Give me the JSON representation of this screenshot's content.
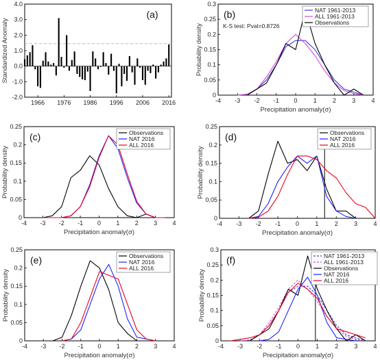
{
  "colors": {
    "nat": "#1f1fff",
    "all": "#e8001c",
    "obs": "#000000",
    "nat_b": "#3a3ae0",
    "all_b": "#d64bd6",
    "ref_line": "#f0a0a0",
    "bars": "#000000"
  },
  "chart_data": [
    {
      "id": "a",
      "panel_label": "(a)",
      "type": "bar",
      "xlabel": "",
      "ylabel": "Standardized Anomaly",
      "xlim": [
        1961,
        2017
      ],
      "ylim": [
        -2.0,
        4.0
      ],
      "xticks": [
        1966,
        1976,
        1986,
        1996,
        2006,
        2016
      ],
      "yticks": [
        -2.0,
        -1.0,
        0.0,
        1.0,
        2.0,
        3.0,
        4.0
      ],
      "ytick_labels": [
        "-2.0",
        "-1.0",
        "0.0",
        "1.0",
        "2.0",
        "3.0",
        "4.0"
      ],
      "reference_line": 1.45,
      "x": [
        1961,
        1962,
        1963,
        1964,
        1965,
        1966,
        1967,
        1968,
        1969,
        1970,
        1971,
        1972,
        1973,
        1974,
        1975,
        1976,
        1977,
        1978,
        1979,
        1980,
        1981,
        1982,
        1983,
        1984,
        1985,
        1986,
        1987,
        1988,
        1989,
        1990,
        1991,
        1992,
        1993,
        1994,
        1995,
        1996,
        1997,
        1998,
        1999,
        2000,
        2001,
        2002,
        2003,
        2004,
        2005,
        2006,
        2007,
        2008,
        2009,
        2010,
        2011,
        2012,
        2013,
        2014,
        2015,
        2016
      ],
      "values": [
        0.45,
        0.7,
        0.9,
        1.35,
        -0.2,
        -1.3,
        -1.4,
        0.35,
        0.9,
        0.3,
        0.1,
        0.2,
        -0.6,
        3.1,
        0.6,
        -0.1,
        2.0,
        -0.3,
        0.4,
        0.95,
        -0.5,
        -0.7,
        -0.85,
        -0.9,
        -0.35,
        -1.6,
        0.95,
        0.5,
        -0.2,
        -0.05,
        0.9,
        0.2,
        -0.55,
        0.8,
        -0.3,
        -1.75,
        0.15,
        -1.3,
        -0.5,
        -0.95,
        0.65,
        -0.4,
        -1.2,
        0.5,
        -0.1,
        -0.9,
        -1.2,
        -0.3,
        -0.45,
        0.1,
        -0.8,
        -0.4,
        0.1,
        0.3,
        0.5,
        1.4
      ]
    },
    {
      "id": "b",
      "panel_label": "(b)",
      "type": "line",
      "xlabel": "Precipitation anomaly(σ)",
      "ylabel": "Probability density",
      "xlim": [
        -4,
        4
      ],
      "ylim": [
        0,
        0.3
      ],
      "xticks": [
        -4,
        -3,
        -2,
        -1,
        0,
        1,
        2,
        3,
        4
      ],
      "yticks": [
        0,
        0.05,
        0.1,
        0.15,
        0.2,
        0.25,
        0.3
      ],
      "annotation": "K-S test: Pval=0.8726",
      "legend": [
        "NAT 1961-2013",
        "ALL 1961-2013",
        "Observations"
      ],
      "series": [
        {
          "name": "NAT 1961-2013",
          "color_key": "nat_b",
          "x": [
            -3,
            -2.5,
            -2,
            -1.5,
            -1,
            -0.5,
            0,
            0.5,
            1,
            1.5,
            2,
            2.5,
            3,
            3.5
          ],
          "y": [
            0,
            0.003,
            0.02,
            0.05,
            0.1,
            0.16,
            0.18,
            0.18,
            0.15,
            0.1,
            0.05,
            0.02,
            0.01,
            0
          ]
        },
        {
          "name": "ALL 1961-2013",
          "color_key": "all_b",
          "x": [
            -3,
            -2.5,
            -2,
            -1.5,
            -1,
            -0.5,
            0,
            0.5,
            1,
            1.5,
            2,
            2.5,
            3,
            3.5
          ],
          "y": [
            0,
            0.003,
            0.02,
            0.06,
            0.11,
            0.17,
            0.2,
            0.17,
            0.13,
            0.08,
            0.04,
            0.015,
            0.005,
            0
          ]
        },
        {
          "name": "Observations",
          "color_key": "obs",
          "x": [
            -2.5,
            -2,
            -1.5,
            -1,
            -0.5,
            0,
            0.5,
            1,
            1.5,
            2,
            2.5,
            3,
            3.5
          ],
          "y": [
            0,
            0.02,
            0.04,
            0.1,
            0.17,
            0.15,
            0.28,
            0.17,
            0.1,
            0.04,
            0,
            0.02,
            0
          ]
        }
      ]
    },
    {
      "id": "c",
      "panel_label": "(c)",
      "type": "line",
      "xlabel": "Precipitation anomaly(σ)",
      "ylabel": "Probability density",
      "xlim": [
        -4,
        4
      ],
      "ylim": [
        0,
        0.25
      ],
      "xticks": [
        -4,
        -3,
        -2,
        -1,
        0,
        1,
        2,
        3,
        4
      ],
      "xtick_labels": [
        "-4",
        "-3",
        "-2",
        "-1",
        "0",
        "1",
        "2",
        "3",
        "4"
      ],
      "yticks": [
        0,
        0.05,
        0.1,
        0.15,
        0.2,
        0.25
      ],
      "legend": [
        "Observations",
        "NAT 2016",
        "ALL 2016"
      ],
      "series": [
        {
          "name": "Observations",
          "color_key": "obs",
          "x": [
            -3,
            -2.5,
            -2,
            -1.5,
            -1,
            -0.5,
            0,
            0.5,
            1,
            1.5,
            2,
            2.5,
            3,
            3.5
          ],
          "y": [
            0,
            0.005,
            0.03,
            0.11,
            0.13,
            0.17,
            0.145,
            0.08,
            0.03,
            0.005,
            0,
            0.01,
            0,
            0
          ]
        },
        {
          "name": "NAT 2016",
          "color_key": "nat",
          "x": [
            -3,
            -2.5,
            -2,
            -1.5,
            -1,
            -0.5,
            0,
            0.5,
            1,
            1.5,
            2,
            2.5,
            3,
            3.5
          ],
          "y": [
            0,
            0,
            0,
            0.005,
            0.03,
            0.09,
            0.17,
            0.225,
            0.19,
            0.11,
            0.04,
            0.01,
            0,
            0
          ]
        },
        {
          "name": "ALL 2016",
          "color_key": "all",
          "x": [
            -3,
            -2.5,
            -2,
            -1.5,
            -1,
            -0.5,
            0,
            0.5,
            1,
            1.5,
            2,
            2.5,
            3,
            3.5
          ],
          "y": [
            0,
            0,
            0,
            0.005,
            0.03,
            0.085,
            0.165,
            0.225,
            0.2,
            0.12,
            0.045,
            0.01,
            0,
            0
          ]
        }
      ]
    },
    {
      "id": "d",
      "panel_label": "(d)",
      "type": "line",
      "xlabel": "Precipitation anomaly(σ)",
      "ylabel": "Probability density",
      "xlim": [
        -4,
        4
      ],
      "ylim": [
        0,
        0.25
      ],
      "xticks": [
        -4,
        -3,
        -2,
        -1,
        0,
        1,
        2,
        3,
        4
      ],
      "yticks": [
        0,
        0.05,
        0.1,
        0.15,
        0.2,
        0.25
      ],
      "vline": 1.4,
      "legend": [
        "Observations",
        "NAT 2016",
        "ALL 2016"
      ],
      "series": [
        {
          "name": "Observations",
          "color_key": "obs",
          "x": [
            -2.5,
            -2,
            -1.5,
            -1,
            -0.5,
            0,
            0.5,
            1,
            1.5,
            2,
            2.5,
            3
          ],
          "y": [
            0,
            0.02,
            0.12,
            0.21,
            0.15,
            0.16,
            0.13,
            0.17,
            0.08,
            0.02,
            0.02,
            0
          ]
        },
        {
          "name": "NAT 2016",
          "color_key": "nat",
          "x": [
            -2.5,
            -2,
            -1.5,
            -1,
            -0.5,
            0,
            0.5,
            1,
            1.5,
            2,
            2.5,
            3
          ],
          "y": [
            0,
            0.005,
            0.04,
            0.1,
            0.14,
            0.17,
            0.15,
            0.17,
            0.06,
            0.02,
            0.005,
            0
          ]
        },
        {
          "name": "ALL 2016",
          "color_key": "all",
          "x": [
            -2.5,
            -2,
            -1.5,
            -1,
            -0.5,
            0,
            0.5,
            1,
            1.5,
            2,
            2.5,
            3,
            3.5,
            4
          ],
          "y": [
            0,
            0.003,
            0.02,
            0.06,
            0.12,
            0.17,
            0.17,
            0.16,
            0.13,
            0.11,
            0.07,
            0.04,
            0.03,
            0
          ]
        }
      ]
    },
    {
      "id": "e",
      "panel_label": "(e)",
      "type": "line",
      "xlabel": "Precipitation anomaly(σ)",
      "ylabel": "Probability density",
      "xlim": [
        -4,
        4
      ],
      "ylim": [
        0,
        0.25
      ],
      "xticks": [
        -4,
        -3,
        -2,
        -1,
        0,
        1,
        2,
        3,
        4
      ],
      "yticks": [
        0,
        0.05,
        0.1,
        0.15,
        0.2,
        0.25
      ],
      "legend": [
        "Observations",
        "NAT 2016",
        "ALL 2016"
      ],
      "series": [
        {
          "name": "Observations",
          "color_key": "obs",
          "x": [
            -2.5,
            -2,
            -1.5,
            -1,
            -0.5,
            0,
            0.5,
            1,
            1.5,
            2,
            2.5
          ],
          "y": [
            0,
            0.01,
            0.07,
            0.15,
            0.22,
            0.2,
            0.14,
            0.05,
            0.02,
            0,
            0
          ]
        },
        {
          "name": "NAT 2016",
          "color_key": "nat",
          "x": [
            -2,
            -1.5,
            -1,
            -0.5,
            0,
            0.5,
            1,
            1.5,
            2,
            2.5,
            3
          ],
          "y": [
            0,
            0.005,
            0.03,
            0.1,
            0.17,
            0.21,
            0.15,
            0.06,
            0.01,
            0.005,
            0
          ]
        },
        {
          "name": "ALL 2016",
          "color_key": "all",
          "x": [
            -2,
            -1.5,
            -1,
            -0.5,
            0,
            0.5,
            1,
            1.5,
            2,
            2.5,
            3
          ],
          "y": [
            0,
            0.005,
            0.05,
            0.12,
            0.19,
            0.18,
            0.17,
            0.1,
            0.03,
            0.005,
            0
          ]
        }
      ]
    },
    {
      "id": "f",
      "panel_label": "(f)",
      "type": "line",
      "xlabel": "Precipitation anomaly(σ)",
      "ylabel": "Probability density",
      "xlim": [
        -4,
        4
      ],
      "ylim": [
        0,
        0.3
      ],
      "xticks": [
        -4,
        -3,
        -2,
        -1,
        0,
        1,
        2,
        3,
        4
      ],
      "yticks": [
        0,
        0.05,
        0.1,
        0.15,
        0.2,
        0.25,
        0.3
      ],
      "vline": 0.9,
      "legend": [
        "NAT 1961-2013",
        "ALL 1961-2013",
        "Observations",
        "NAT 2016",
        "ALL 2016"
      ],
      "series": [
        {
          "name": "NAT 1961-2013",
          "color_key": "nat_b",
          "dash": "3,2",
          "x": [
            -3,
            -2.5,
            -2,
            -1.5,
            -1,
            -0.5,
            0,
            0.5,
            1,
            1.5,
            2,
            2.5,
            3,
            3.5
          ],
          "y": [
            0,
            0.003,
            0.02,
            0.05,
            0.1,
            0.16,
            0.18,
            0.18,
            0.15,
            0.1,
            0.05,
            0.02,
            0.01,
            0
          ]
        },
        {
          "name": "ALL 1961-2013",
          "color_key": "all_b",
          "dash": "3,2",
          "x": [
            -3,
            -2.5,
            -2,
            -1.5,
            -1,
            -0.5,
            0,
            0.5,
            1,
            1.5,
            2,
            2.5,
            3,
            3.5
          ],
          "y": [
            0,
            0.003,
            0.02,
            0.06,
            0.11,
            0.17,
            0.2,
            0.17,
            0.13,
            0.08,
            0.04,
            0.015,
            0.005,
            0
          ]
        },
        {
          "name": "Observations",
          "color_key": "obs",
          "x": [
            -2.5,
            -2,
            -1.5,
            -1,
            -0.5,
            0,
            0.5,
            1,
            1.5,
            2,
            2.5,
            3,
            3.5
          ],
          "y": [
            0,
            0.02,
            0.04,
            0.1,
            0.17,
            0.15,
            0.28,
            0.17,
            0.1,
            0.04,
            0,
            0.02,
            0
          ]
        },
        {
          "name": "NAT 2016",
          "color_key": "nat",
          "x": [
            -2,
            -1.5,
            -1,
            -0.5,
            0,
            0.5,
            1,
            1.5,
            2,
            2.5,
            3
          ],
          "y": [
            0,
            0.005,
            0.03,
            0.1,
            0.17,
            0.21,
            0.15,
            0.06,
            0.01,
            0.005,
            0
          ]
        },
        {
          "name": "ALL 2016",
          "color_key": "all",
          "x": [
            -3.5,
            -3,
            -2.5,
            -2,
            -1.5,
            -1,
            -0.5,
            0,
            0.5,
            1,
            1.5,
            2,
            2.5,
            3,
            3.5
          ],
          "y": [
            0,
            0.005,
            0.01,
            0.02,
            0.05,
            0.1,
            0.16,
            0.19,
            0.17,
            0.14,
            0.08,
            0.04,
            0.03,
            0.02,
            0.01
          ]
        }
      ]
    }
  ]
}
